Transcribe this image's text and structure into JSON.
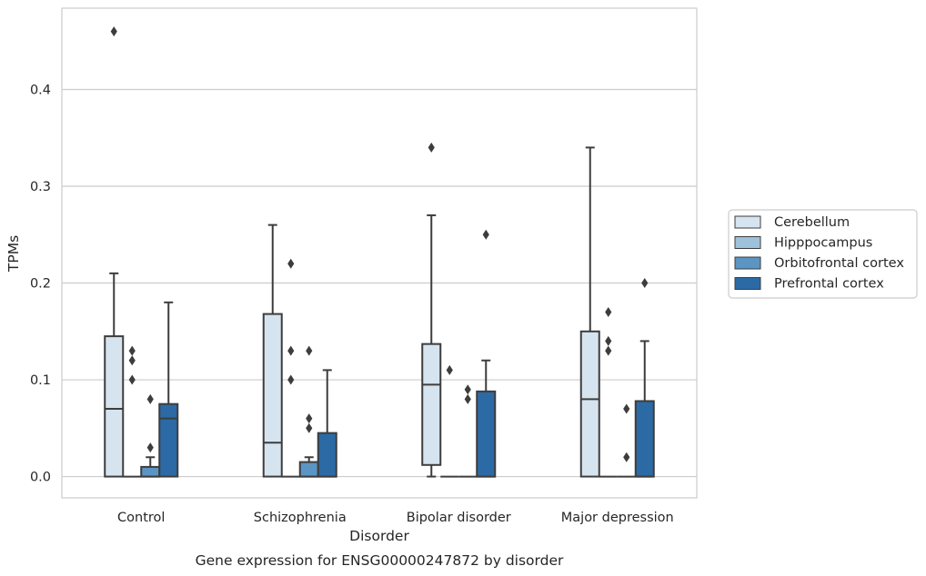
{
  "chart_data": {
    "type": "box",
    "title": "Gene expression for ENSG00000247872 by disorder",
    "xlabel": "Disorder",
    "ylabel": "TPMs",
    "ylim": [
      -0.022,
      0.484
    ],
    "yticks": [
      0.0,
      0.1,
      0.2,
      0.3,
      0.4
    ],
    "ytick_labels": [
      "0.0",
      "0.1",
      "0.2",
      "0.3",
      "0.4"
    ],
    "grid": "y",
    "legend_position": "right",
    "categories": [
      "Control",
      "Schizophrenia",
      "Bipolar disorder",
      "Major depression"
    ],
    "series": [
      {
        "name": "Cerebellum",
        "color": "#d6e4f0",
        "boxes": [
          {
            "q1": 0.0,
            "median": 0.07,
            "q3": 0.145,
            "whisker_low": 0.0,
            "whisker_high": 0.21,
            "outliers": [
              0.46
            ]
          },
          {
            "q1": 0.0,
            "median": 0.035,
            "q3": 0.168,
            "whisker_low": 0.0,
            "whisker_high": 0.26,
            "outliers": []
          },
          {
            "q1": 0.012,
            "median": 0.095,
            "q3": 0.137,
            "whisker_low": 0.0,
            "whisker_high": 0.27,
            "outliers": [
              0.34
            ]
          },
          {
            "q1": 0.0,
            "median": 0.08,
            "q3": 0.15,
            "whisker_low": 0.0,
            "whisker_high": 0.34,
            "outliers": []
          }
        ]
      },
      {
        "name": "Hipppocampus",
        "color": "#9ec2dc",
        "boxes": [
          {
            "q1": 0.0,
            "median": 0.0,
            "q3": 0.0,
            "whisker_low": 0.0,
            "whisker_high": 0.0,
            "outliers": [
              0.1,
              0.12,
              0.13
            ]
          },
          {
            "q1": 0.0,
            "median": 0.0,
            "q3": 0.0,
            "whisker_low": 0.0,
            "whisker_high": 0.0,
            "outliers": [
              0.1,
              0.13,
              0.22
            ]
          },
          {
            "q1": 0.0,
            "median": 0.0,
            "q3": 0.0,
            "whisker_low": 0.0,
            "whisker_high": 0.0,
            "outliers": [
              0.11
            ]
          },
          {
            "q1": 0.0,
            "median": 0.0,
            "q3": 0.0,
            "whisker_low": 0.0,
            "whisker_high": 0.0,
            "outliers": [
              0.13,
              0.14,
              0.17
            ]
          }
        ]
      },
      {
        "name": "Orbitofrontal cortex",
        "color": "#5b95c4",
        "boxes": [
          {
            "q1": 0.0,
            "median": 0.0,
            "q3": 0.01,
            "whisker_low": 0.0,
            "whisker_high": 0.02,
            "outliers": [
              0.03,
              0.08
            ]
          },
          {
            "q1": 0.0,
            "median": 0.0,
            "q3": 0.015,
            "whisker_low": 0.0,
            "whisker_high": 0.02,
            "outliers": [
              0.05,
              0.06,
              0.13
            ]
          },
          {
            "q1": 0.0,
            "median": 0.0,
            "q3": 0.0,
            "whisker_low": 0.0,
            "whisker_high": 0.0,
            "outliers": [
              0.08,
              0.09
            ]
          },
          {
            "q1": 0.0,
            "median": 0.0,
            "q3": 0.0,
            "whisker_low": 0.0,
            "whisker_high": 0.0,
            "outliers": [
              0.02,
              0.07
            ]
          }
        ]
      },
      {
        "name": "Prefrontal cortex",
        "color": "#2b6aa5",
        "boxes": [
          {
            "q1": 0.0,
            "median": 0.06,
            "q3": 0.075,
            "whisker_low": 0.0,
            "whisker_high": 0.18,
            "outliers": []
          },
          {
            "q1": 0.0,
            "median": 0.0,
            "q3": 0.045,
            "whisker_low": 0.0,
            "whisker_high": 0.11,
            "outliers": []
          },
          {
            "q1": 0.0,
            "median": 0.0,
            "q3": 0.088,
            "whisker_low": 0.0,
            "whisker_high": 0.12,
            "outliers": [
              0.25
            ]
          },
          {
            "q1": 0.0,
            "median": 0.0,
            "q3": 0.078,
            "whisker_low": 0.0,
            "whisker_high": 0.14,
            "outliers": [
              0.2
            ]
          }
        ]
      }
    ]
  }
}
